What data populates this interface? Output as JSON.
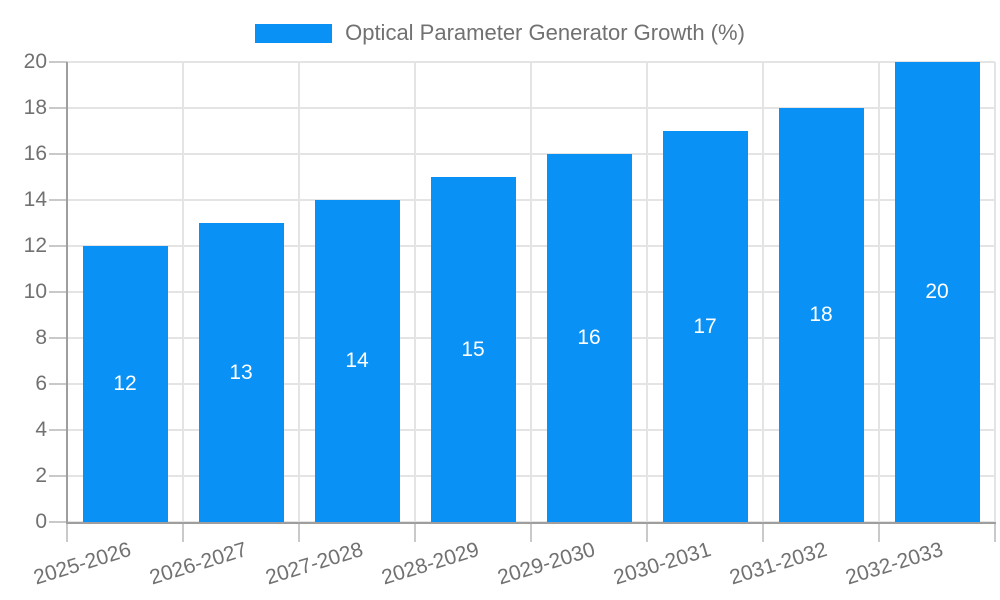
{
  "chart_data": {
    "type": "bar",
    "title": "Optical Parameter Generator Growth (%)",
    "categories": [
      "2025-2026",
      "2026-2027",
      "2027-2028",
      "2028-2029",
      "2029-2030",
      "2030-2031",
      "2031-2032",
      "2032-2033"
    ],
    "values": [
      12,
      13,
      14,
      15,
      16,
      17,
      18,
      20
    ],
    "bar_labels": [
      "12",
      "13",
      "14",
      "15",
      "16",
      "17",
      "18",
      "20"
    ],
    "xlabel": "",
    "ylabel": "",
    "ylim": [
      0,
      20
    ],
    "yticks": [
      0,
      2,
      4,
      6,
      8,
      10,
      12,
      14,
      16,
      18,
      20
    ],
    "grid": "both",
    "legend_position": "top",
    "legend": [
      "Optical Parameter Generator Growth (%)"
    ],
    "x_tick_rotation_deg": -17,
    "colors": {
      "bar": "#0a91f5",
      "grid_line": "#e4e4e4",
      "axis_line": "#9e9e9e",
      "tick_mark": "#c9c9c9",
      "axis_text": "#717171",
      "bar_label_text": "#ffffff",
      "background": "#ffffff"
    }
  }
}
